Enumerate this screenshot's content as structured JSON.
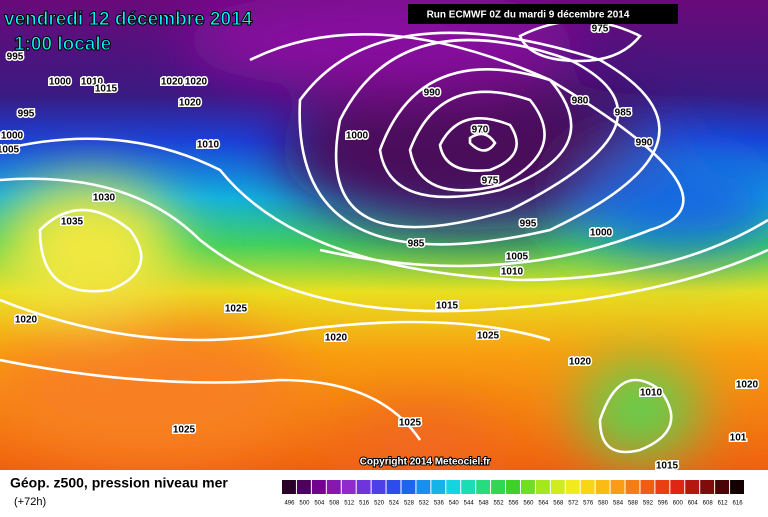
{
  "header": {
    "date": "vendredi 12 décembre 2014",
    "time": "1:00 locale",
    "run": "Run ECMWF 0Z du mardi 9 décembre 2014"
  },
  "footer": {
    "title": "Géop. z500, pression niveau mer",
    "lead": "(+72h)",
    "copyright": "Copyright 2014 Meteociel.fr"
  },
  "legend": {
    "labels": [
      "496",
      "500",
      "504",
      "508",
      "512",
      "516",
      "520",
      "524",
      "528",
      "532",
      "536",
      "540",
      "544",
      "548",
      "552",
      "556",
      "560",
      "564",
      "568",
      "572",
      "576",
      "580",
      "584",
      "588",
      "592",
      "596",
      "600",
      "604",
      "608",
      "612",
      "616"
    ]
  },
  "isobar_labels": [
    "995",
    "1000",
    "1010",
    "1015",
    "1020",
    "1020",
    "1020",
    "995",
    "1000",
    "1005",
    "1010",
    "1000",
    "990",
    "970",
    "975",
    "980",
    "985",
    "990",
    "975",
    "1030",
    "1035",
    "985",
    "995",
    "1000",
    "1005",
    "1010",
    "1025",
    "1015",
    "1020",
    "1025",
    "1020",
    "1020",
    "1010",
    "1020",
    "1025",
    "1025",
    "1015",
    "101"
  ]
}
